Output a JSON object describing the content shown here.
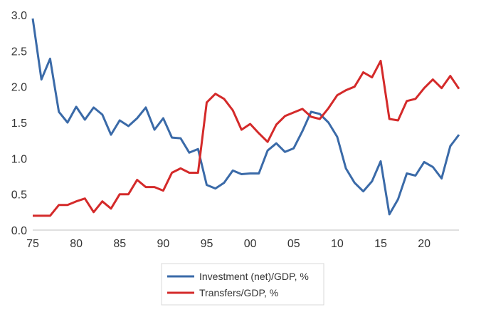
{
  "chart_data": {
    "type": "line",
    "x": [
      1975,
      1976,
      1977,
      1978,
      1979,
      1980,
      1981,
      1982,
      1983,
      1984,
      1985,
      1986,
      1987,
      1988,
      1989,
      1990,
      1991,
      1992,
      1993,
      1994,
      1995,
      1996,
      1997,
      1998,
      1999,
      2000,
      2001,
      2002,
      2003,
      2004,
      2005,
      2006,
      2007,
      2008,
      2009,
      2010,
      2011,
      2012,
      2013,
      2014,
      2015,
      2016,
      2017,
      2018,
      2019,
      2020,
      2021,
      2022,
      2023,
      2024
    ],
    "x_tick_values": [
      1975,
      1980,
      1985,
      1990,
      1995,
      2000,
      2005,
      2010,
      2015,
      2020
    ],
    "x_tick_labels": [
      "75",
      "80",
      "85",
      "90",
      "95",
      "00",
      "05",
      "10",
      "15",
      "20"
    ],
    "xlim": [
      1975,
      2024
    ],
    "ylim": [
      0,
      3
    ],
    "y_tick_values": [
      0,
      0.5,
      1,
      1.5,
      2,
      2.5,
      3
    ],
    "y_tick_labels": [
      "0.0",
      "0.5",
      "1.0",
      "1.5",
      "2.0",
      "2.5",
      "3.0"
    ],
    "grid": false,
    "legend_position": "bottom",
    "series": [
      {
        "name": "Investment (net)/GDP, %",
        "color": "#3a6aa8",
        "values": [
          2.95,
          2.1,
          2.39,
          1.65,
          1.5,
          1.72,
          1.54,
          1.71,
          1.61,
          1.33,
          1.53,
          1.45,
          1.56,
          1.71,
          1.4,
          1.56,
          1.29,
          1.28,
          1.08,
          1.13,
          0.63,
          0.58,
          0.66,
          0.83,
          0.78,
          0.79,
          0.79,
          1.11,
          1.21,
          1.09,
          1.14,
          1.38,
          1.65,
          1.62,
          1.5,
          1.3,
          0.86,
          0.66,
          0.54,
          0.68,
          0.96,
          0.22,
          0.43,
          0.79,
          0.76,
          0.95,
          0.88,
          0.72,
          1.17,
          1.33
        ]
      },
      {
        "name": "Transfers/GDP, %",
        "color": "#d42a2a",
        "values": [
          0.2,
          0.2,
          0.2,
          0.35,
          0.35,
          0.4,
          0.44,
          0.25,
          0.4,
          0.3,
          0.5,
          0.5,
          0.7,
          0.6,
          0.6,
          0.55,
          0.8,
          0.86,
          0.8,
          0.8,
          1.78,
          1.9,
          1.83,
          1.67,
          1.4,
          1.48,
          1.35,
          1.23,
          1.47,
          1.59,
          1.64,
          1.69,
          1.58,
          1.55,
          1.7,
          1.88,
          1.95,
          2.0,
          2.2,
          2.13,
          2.36,
          1.55,
          1.53,
          1.8,
          1.83,
          1.98,
          2.1,
          1.98,
          2.15,
          1.97
        ]
      }
    ]
  }
}
